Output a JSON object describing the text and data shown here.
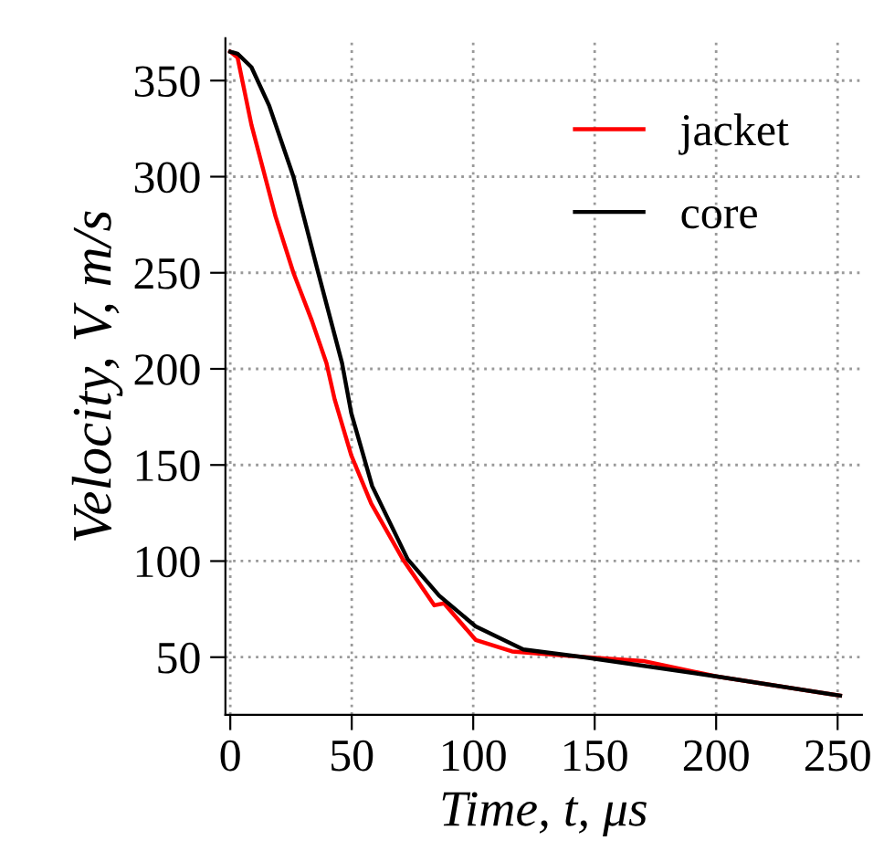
{
  "chart_data": {
    "type": "line",
    "xlabel": "Time, t, μs",
    "ylabel": "Velocity, V, m/s",
    "xlim": [
      -2,
      260
    ],
    "ylim": [
      20,
      372
    ],
    "xticks": [
      0,
      50,
      100,
      150,
      200,
      250
    ],
    "yticks": [
      50,
      100,
      150,
      200,
      250,
      300,
      350
    ],
    "grid": true,
    "legend": "top right",
    "line_style": "solid",
    "marker": "none",
    "series": [
      {
        "name": "jacket",
        "color": "#ff0000",
        "x": [
          0,
          3,
          8.7,
          18.7,
          26,
          33.6,
          39.6,
          43,
          49.8,
          58,
          71,
          84,
          88,
          101,
          116,
          135.6,
          170,
          200,
          251
        ],
        "values": [
          365,
          362,
          327,
          279,
          250,
          225,
          203,
          184,
          155,
          130,
          101,
          77,
          78,
          59,
          53,
          51,
          48,
          40,
          30
        ]
      },
      {
        "name": "core",
        "color": "#000000",
        "x": [
          0,
          3,
          8.7,
          16,
          26,
          36,
          46,
          49.8,
          58.4,
          73,
          86,
          101,
          120.6,
          145.5,
          200,
          251
        ],
        "values": [
          365,
          364,
          357,
          337,
          300,
          251,
          203,
          177,
          139,
          101,
          82,
          66,
          54,
          50,
          40,
          30
        ]
      }
    ]
  }
}
